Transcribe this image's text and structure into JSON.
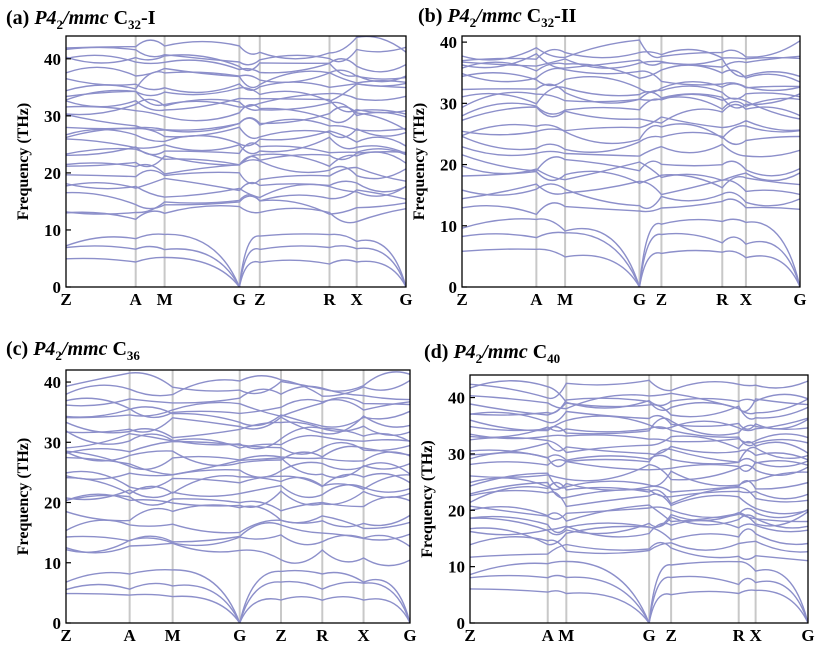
{
  "chart_data": [
    {
      "type": "line",
      "panel": "(a)",
      "title": {
        "label": "(a) ",
        "sg1": "P4",
        "sg_sub": "2",
        "sg2": "/mmc",
        "el": " C",
        "el_sub": "32",
        "suffix": "-I"
      },
      "ylabel": "Frequency (THz)",
      "ylim": [
        0,
        44
      ],
      "yticks": [
        "0",
        "10",
        "20",
        "30",
        "40"
      ],
      "path": [
        {
          "label": "Z",
          "pos": 0
        },
        {
          "label": "A",
          "pos": 0.205
        },
        {
          "label": "M",
          "pos": 0.29
        },
        {
          "label": "G",
          "pos": 0.51
        },
        {
          "label": "Z",
          "pos": 0.57
        },
        {
          "label": "R",
          "pos": 0.775
        },
        {
          "label": "X",
          "pos": 0.855
        },
        {
          "label": "G",
          "pos": 1
        }
      ],
      "flat_bands": [
        12.5,
        14,
        15.5,
        17,
        18.5,
        19.5,
        20.5,
        22,
        23,
        24,
        25,
        26,
        27,
        28,
        29,
        30,
        31,
        32,
        33,
        34,
        35,
        36,
        37,
        38.5,
        40,
        41,
        42.5
      ],
      "acoustic_max": 9.5
    },
    {
      "type": "line",
      "panel": "(b)",
      "title": {
        "label": "(b) ",
        "sg1": "P4",
        "sg_sub": "2",
        "sg2": "/mmc",
        "el": " C",
        "el_sub": "32",
        "suffix": "-II"
      },
      "ylabel": "Frequency (THz)",
      "ylim": [
        0,
        41
      ],
      "yticks": [
        "0",
        "10",
        "20",
        "30",
        "40"
      ],
      "path": [
        {
          "label": "Z",
          "pos": 0
        },
        {
          "label": "A",
          "pos": 0.22
        },
        {
          "label": "M",
          "pos": 0.305
        },
        {
          "label": "G",
          "pos": 0.525
        },
        {
          "label": "Z",
          "pos": 0.59
        },
        {
          "label": "R",
          "pos": 0.77
        },
        {
          "label": "X",
          "pos": 0.84
        },
        {
          "label": "G",
          "pos": 1
        }
      ],
      "flat_bands": [
        13,
        14.5,
        16,
        17.5,
        19,
        20.5,
        22,
        23.5,
        25,
        26.5,
        28,
        29,
        30,
        31,
        32,
        33,
        34,
        35,
        36,
        37,
        38,
        39
      ],
      "acoustic_max": 11.5
    },
    {
      "type": "line",
      "panel": "(c)",
      "title": {
        "label": "(c) ",
        "sg1": "P4",
        "sg_sub": "2",
        "sg2": "/mmc",
        "el": " C",
        "el_sub": "36",
        "suffix": ""
      },
      "ylabel": "Frequency (THz)",
      "ylim": [
        0,
        42
      ],
      "yticks": [
        "0",
        "10",
        "20",
        "30",
        "40"
      ],
      "path": [
        {
          "label": "Z",
          "pos": 0
        },
        {
          "label": "A",
          "pos": 0.185
        },
        {
          "label": "M",
          "pos": 0.31
        },
        {
          "label": "G",
          "pos": 0.505
        },
        {
          "label": "Z",
          "pos": 0.625
        },
        {
          "label": "R",
          "pos": 0.745
        },
        {
          "label": "X",
          "pos": 0.865
        },
        {
          "label": "G",
          "pos": 1
        }
      ],
      "flat_bands": [
        12,
        13.5,
        15,
        16.5,
        18,
        19.5,
        21,
        22,
        23,
        24,
        25,
        26,
        27,
        28,
        29,
        30,
        31,
        32,
        33,
        34,
        35,
        36,
        37.5,
        39,
        40
      ],
      "acoustic_max": 9
    },
    {
      "type": "line",
      "panel": "(d)",
      "title": {
        "label": "(d) ",
        "sg1": "P4",
        "sg_sub": "2",
        "sg2": "/mmc",
        "el": " C",
        "el_sub": "40",
        "suffix": ""
      },
      "ylabel": "Frequency (THz)",
      "ylim": [
        0,
        44
      ],
      "yticks": [
        "0",
        "10",
        "20",
        "30",
        "40"
      ],
      "path": [
        {
          "label": "Z",
          "pos": 0
        },
        {
          "label": "A",
          "pos": 0.23
        },
        {
          "label": "M",
          "pos": 0.285
        },
        {
          "label": "G",
          "pos": 0.53
        },
        {
          "label": "Z",
          "pos": 0.595
        },
        {
          "label": "R",
          "pos": 0.795
        },
        {
          "label": "X",
          "pos": 0.845
        },
        {
          "label": "G",
          "pos": 1
        }
      ],
      "flat_bands": [
        12.5,
        14,
        15.5,
        16.5,
        17.5,
        18.5,
        19.5,
        20.5,
        21.5,
        22.5,
        23.5,
        24.5,
        25.5,
        26.5,
        27.5,
        28.5,
        29.5,
        30.5,
        31.5,
        32.5,
        33.5,
        34.5,
        35.5,
        36.5,
        37.5,
        38.5,
        39.5,
        40.5,
        41.5
      ],
      "acoustic_max": 11
    }
  ],
  "colors": {
    "band": "#8c8fca",
    "symmetry_line": "#c8c8c8",
    "axis": "#000000"
  }
}
